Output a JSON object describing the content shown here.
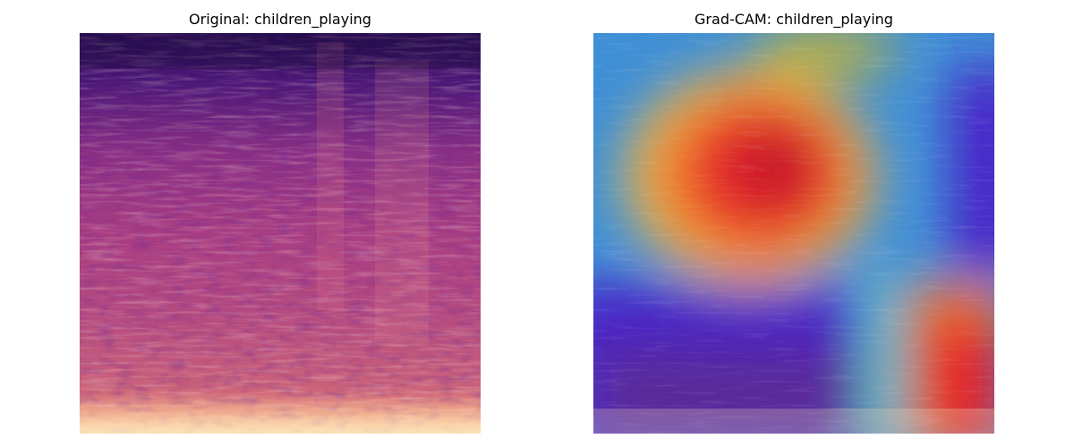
{
  "panels": [
    {
      "title": "Original: children_playing",
      "kind": "mel-spectrogram"
    },
    {
      "title": "Grad-CAM: children_playing",
      "kind": "grad-cam-overlay"
    }
  ],
  "colors": {
    "background": "#ffffff",
    "magma_dark": "#2a0f57",
    "magma_mid": "#b0457e",
    "magma_bright": "#fcd6a6",
    "jet_blue": "#3b8fd8",
    "jet_red": "#e8202a",
    "jet_yellow": "#f3c542",
    "jet_violet": "#5a1fc8"
  }
}
